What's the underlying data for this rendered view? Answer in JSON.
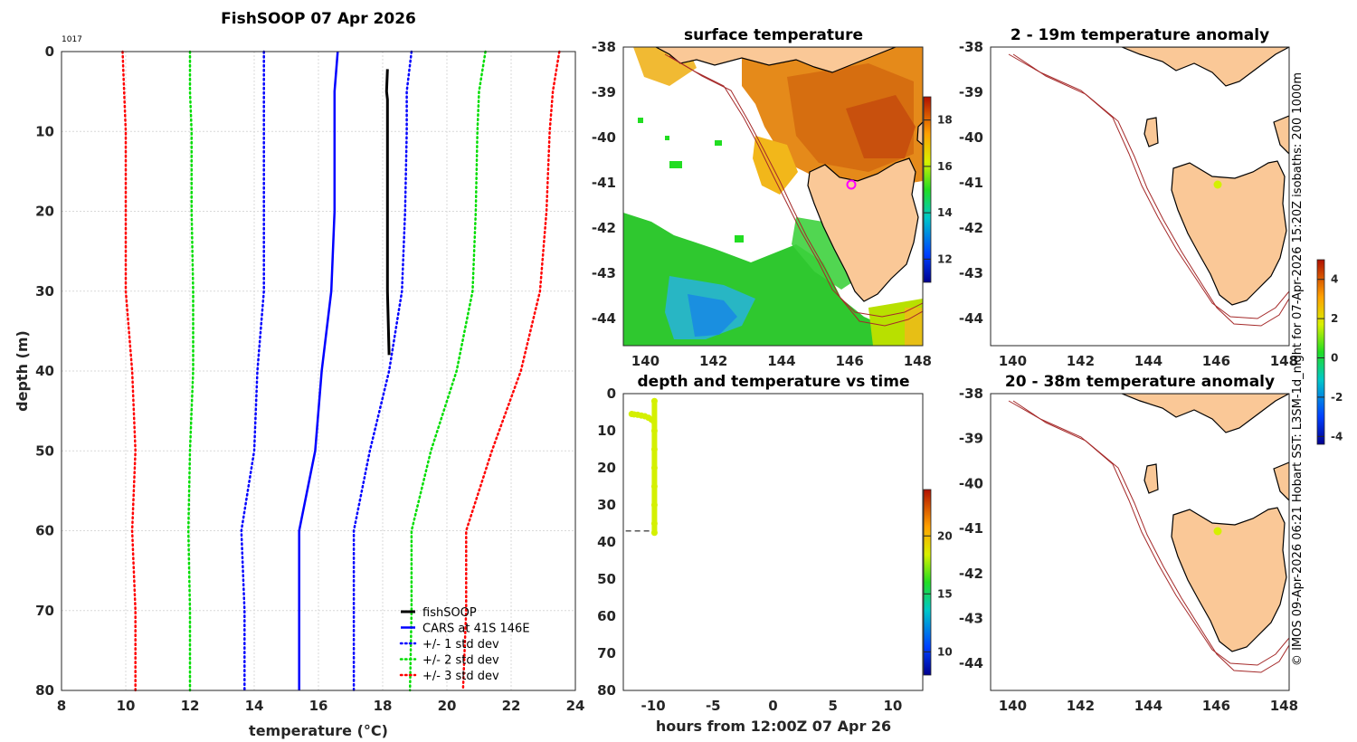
{
  "chart_data": [
    {
      "type": "line",
      "id": "profile",
      "title": "FishSOOP 07 Apr 2026",
      "annotation": "1017",
      "xlabel": "temperature (°C)",
      "ylabel": "depth (m)",
      "xlim": [
        8,
        24
      ],
      "ylim": [
        80,
        0
      ],
      "xticks": [
        "8",
        "10",
        "12",
        "14",
        "16",
        "18",
        "20",
        "22",
        "24"
      ],
      "yticks": [
        "0",
        "10",
        "20",
        "30",
        "40",
        "50",
        "60",
        "70",
        "80"
      ],
      "grid": true,
      "legend_position": "bottom-right",
      "series": [
        {
          "name": "fishSOOP",
          "color": "#000000",
          "style": "solid",
          "width": 3,
          "depth": [
            2.2,
            5,
            6,
            10,
            20,
            30,
            38
          ],
          "temp": [
            18.15,
            18.12,
            18.15,
            18.15,
            18.15,
            18.15,
            18.2
          ]
        },
        {
          "name": "CARS at 41S 146E",
          "color": "#0000ff",
          "style": "solid",
          "width": 2.5,
          "depth": [
            0,
            5,
            10,
            20,
            30,
            40,
            50,
            60,
            70,
            80
          ],
          "temp": [
            16.6,
            16.5,
            16.5,
            16.5,
            16.4,
            16.1,
            15.9,
            15.4,
            15.4,
            15.4
          ]
        },
        {
          "name": "+/- 1 std dev",
          "color": "#0000ff",
          "style": "dotted",
          "width": 2.5,
          "depth": [
            0,
            5,
            10,
            20,
            30,
            40,
            50,
            60,
            70,
            80
          ],
          "temp": [
            18.9,
            18.75,
            18.75,
            18.7,
            18.6,
            18.2,
            17.6,
            17.1,
            17.1,
            17.1
          ],
          "pair_depth": [
            0,
            5,
            10,
            20,
            30,
            40,
            50,
            60,
            70,
            80
          ],
          "pair_temp": [
            14.3,
            14.3,
            14.3,
            14.3,
            14.3,
            14.1,
            14.0,
            13.6,
            13.7,
            13.7
          ]
        },
        {
          "name": "+/- 2 std dev",
          "color": "#00dd00",
          "style": "dotted",
          "width": 2.5,
          "depth": [
            0,
            5,
            10,
            20,
            30,
            40,
            50,
            60,
            70,
            80
          ],
          "temp": [
            21.2,
            21.0,
            20.95,
            20.9,
            20.8,
            20.3,
            19.5,
            18.9,
            18.9,
            18.85
          ],
          "pair_depth": [
            0,
            5,
            10,
            20,
            30,
            40,
            50,
            60,
            70,
            80
          ],
          "pair_temp": [
            12.0,
            12.0,
            12.05,
            12.05,
            12.1,
            12.1,
            12.0,
            11.95,
            12.0,
            12.0
          ]
        },
        {
          "name": "+/- 3 std dev",
          "color": "#ff0000",
          "style": "dotted",
          "width": 2.5,
          "depth": [
            0,
            5,
            10,
            20,
            30,
            40,
            50,
            60,
            70,
            80
          ],
          "temp": [
            23.5,
            23.3,
            23.2,
            23.1,
            22.9,
            22.3,
            21.4,
            20.6,
            20.6,
            20.5
          ],
          "pair_depth": [
            0,
            5,
            10,
            20,
            30,
            40,
            50,
            60,
            70,
            80
          ],
          "pair_temp": [
            9.9,
            9.95,
            10.0,
            10.0,
            10.0,
            10.2,
            10.3,
            10.2,
            10.3,
            10.3
          ]
        }
      ]
    },
    {
      "type": "heatmap",
      "id": "sst",
      "title": "surface temperature",
      "xticks": [
        "140",
        "142",
        "144",
        "146",
        "148"
      ],
      "yticks": [
        "-38",
        "-39",
        "-40",
        "-41",
        "-42",
        "-43",
        "-44"
      ],
      "xlim": [
        139.3,
        148.2
      ],
      "ylim": [
        -44.6,
        -38
      ],
      "colorbar": {
        "range": [
          11,
          19
        ],
        "ticks": [
          "12",
          "14",
          "16",
          "18"
        ],
        "tick_values": [
          12,
          14,
          16,
          18
        ]
      },
      "marker": {
        "lon": 146.1,
        "lat": -41.05,
        "color": "#ff00ff"
      }
    },
    {
      "type": "scatter",
      "id": "depth_time",
      "title": "depth and temperature vs time",
      "xlabel": "hours from 12:00Z 07 Apr 26",
      "xlim": [
        -12.5,
        12.5
      ],
      "ylim": [
        80,
        0
      ],
      "xticks": [
        "-10",
        "-5",
        "0",
        "5",
        "10"
      ],
      "xtick_values": [
        -10,
        -5,
        0,
        5,
        10
      ],
      "yticks": [
        "0",
        "10",
        "20",
        "30",
        "40",
        "50",
        "60",
        "70",
        "80"
      ],
      "colorbar": {
        "range": [
          8,
          24
        ],
        "ticks": [
          "10",
          "15",
          "20"
        ],
        "tick_values": [
          10,
          15,
          20
        ]
      },
      "points": {
        "hours": [
          -11.8,
          -11.6,
          -11.3,
          -11.0,
          -10.7,
          -10.4,
          -10.15,
          -9.95,
          -9.9,
          -9.9,
          -9.9,
          -9.9,
          -9.9,
          -9.9,
          -9.9,
          -9.9
        ],
        "depth": [
          5.5,
          5.6,
          5.7,
          5.9,
          6.1,
          6.5,
          7.0,
          7.5,
          10,
          15,
          20,
          25,
          30,
          35,
          37.5,
          2.0
        ],
        "temp": 18.2,
        "color": "#d4f000"
      },
      "bottom_line": {
        "hours": [
          -12.3,
          -9.9
        ],
        "depth": 37
      }
    },
    {
      "type": "heatmap",
      "id": "anom_upper",
      "title": "2 - 19m temperature anomaly",
      "xticks": [
        "140",
        "142",
        "144",
        "146",
        "148"
      ],
      "yticks": [
        "-38",
        "-39",
        "-40",
        "-41",
        "-42",
        "-43",
        "-44"
      ],
      "marker": {
        "lon": 146.0,
        "lat": -41.0,
        "color": "#d4f000"
      }
    },
    {
      "type": "heatmap",
      "id": "anom_lower",
      "title": "20 - 38m temperature anomaly",
      "xticks": [
        "140",
        "142",
        "144",
        "146",
        "148"
      ],
      "yticks": [
        "-38",
        "-39",
        "-40",
        "-41",
        "-42",
        "-43",
        "-44"
      ],
      "marker": {
        "lon": 146.0,
        "lat": -41.0,
        "color": "#d4f000"
      },
      "colorbar": {
        "range": [
          -4.4,
          5
        ],
        "ticks": [
          "-4",
          "-2",
          "0",
          "2",
          "4"
        ],
        "tick_values": [
          -4,
          -2,
          0,
          2,
          4
        ]
      }
    }
  ],
  "footer_text": "© IMOS 09-Apr-2026 06:21 Hobart SST: L3SM-1d_night for 07-Apr-2026 15:20Z isobaths: 200  1000m"
}
